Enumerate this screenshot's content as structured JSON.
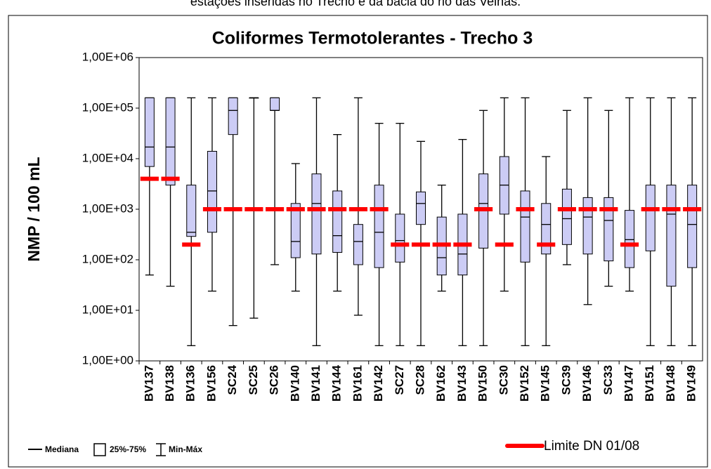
{
  "caption": "estações inseridas no Trecho e da  bacia do rio das Velhas.",
  "chart_data": {
    "type": "box",
    "title": "Coliformes Termotolerantes - Trecho 3",
    "y_label": "NMP / 100 mL",
    "yscale": "log",
    "ylim": [
      1,
      1000000
    ],
    "yticks": [
      {
        "value": 1,
        "label": "1,00E+00"
      },
      {
        "value": 10,
        "label": "1,00E+01"
      },
      {
        "value": 100,
        "label": "1,00E+02"
      },
      {
        "value": 1000,
        "label": "1,00E+03"
      },
      {
        "value": 10000,
        "label": "1,00E+04"
      },
      {
        "value": 100000,
        "label": "1,00E+05"
      },
      {
        "value": 1000000,
        "label": "1,00E+06"
      }
    ],
    "categories": [
      "BV137",
      "BV138",
      "BV136",
      "BV156",
      "SC24",
      "SC25",
      "SC26",
      "BV140",
      "BV141",
      "BV144",
      "BV161",
      "BV142",
      "SC27",
      "SC28",
      "BV162",
      "BV143",
      "BV150",
      "SC30",
      "BV152",
      "BV145",
      "SC39",
      "BV146",
      "SC33",
      "BV147",
      "BV151",
      "BV148",
      "BV149"
    ],
    "box_color": "#ccccf5",
    "min": [
      50,
      30,
      2,
      24,
      5,
      7,
      80,
      24,
      2,
      24,
      8,
      2,
      2,
      2,
      24,
      2,
      2,
      24,
      2,
      2,
      80,
      13,
      30,
      24,
      2,
      2,
      2
    ],
    "q1": [
      7000,
      3000,
      290,
      350,
      30000,
      160000,
      90000,
      110,
      130,
      140,
      80,
      70,
      90,
      500,
      50,
      50,
      170,
      800,
      90,
      130,
      200,
      130,
      95,
      70,
      150,
      30,
      70
    ],
    "median": [
      17000,
      17000,
      350,
      2300,
      90000,
      160000,
      90000,
      230,
      1300,
      300,
      230,
      350,
      240,
      1300,
      110,
      130,
      1300,
      3000,
      700,
      500,
      650,
      700,
      600,
      250,
      1000,
      800,
      500
    ],
    "q3": [
      160000,
      160000,
      3000,
      14000,
      160000,
      160000,
      160000,
      1300,
      5000,
      2300,
      500,
      3000,
      800,
      2200,
      700,
      800,
      5000,
      11000,
      2300,
      1300,
      2500,
      1700,
      1700,
      950,
      3000,
      3000,
      3000
    ],
    "max": [
      160000,
      160000,
      160000,
      160000,
      160000,
      160000,
      160000,
      8000,
      160000,
      30000,
      160000,
      50000,
      50000,
      22000,
      3000,
      24000,
      90000,
      160000,
      160000,
      11000,
      90000,
      160000,
      90000,
      160000,
      160000,
      160000,
      160000
    ],
    "box_legend": {
      "median": "Mediana",
      "box": "25%-75%",
      "whisker": "Min-Máx"
    },
    "series": [
      {
        "name": "Limite DN 01/08",
        "color": "#ff0000",
        "values": [
          4000,
          4000,
          200,
          1000,
          1000,
          1000,
          1000,
          1000,
          1000,
          1000,
          1000,
          1000,
          200,
          200,
          200,
          200,
          1000,
          200,
          1000,
          200,
          1000,
          1000,
          1000,
          200,
          1000,
          1000,
          1000
        ]
      }
    ]
  }
}
